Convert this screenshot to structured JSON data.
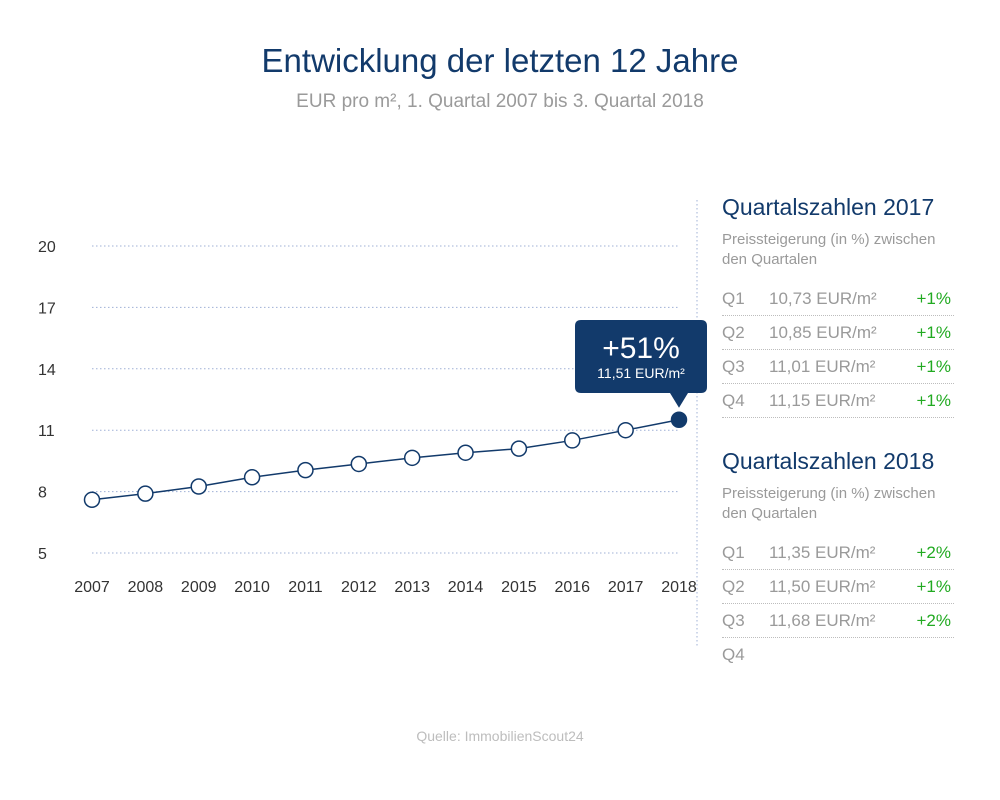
{
  "header": {
    "title": "Entwicklung der letzten 12 Jahre",
    "subtitle": "EUR pro m², 1. Quartal 2007 bis 3. Quartal 2018"
  },
  "chart_data": {
    "type": "line",
    "x": [
      "2007",
      "2008",
      "2009",
      "2010",
      "2011",
      "2012",
      "2013",
      "2014",
      "2015",
      "2016",
      "2017",
      "2018"
    ],
    "series": [
      {
        "values": [
          7.6,
          7.9,
          8.25,
          8.7,
          9.05,
          9.35,
          9.65,
          9.9,
          10.1,
          10.5,
          11.0,
          11.51
        ]
      }
    ],
    "ylim": [
      5,
      20
    ],
    "yticks": [
      5,
      8,
      11,
      14,
      17,
      20
    ],
    "grid": true,
    "line_color": "#123a6b",
    "annotation": {
      "label": "+51%",
      "sublabel": "11,51 EUR/m²",
      "target_index": 11
    }
  },
  "panels": [
    {
      "title": "Quartalszahlen 2017",
      "subtitle": "Preissteigerung (in %) zwischen den Quartalen",
      "rows": [
        {
          "label": "Q1",
          "value": "10,73 EUR/m²",
          "change": "+1%"
        },
        {
          "label": "Q2",
          "value": "10,85 EUR/m²",
          "change": "+1%"
        },
        {
          "label": "Q3",
          "value": "11,01 EUR/m²",
          "change": "+1%"
        },
        {
          "label": "Q4",
          "value": "11,15 EUR/m²",
          "change": "+1%"
        }
      ]
    },
    {
      "title": "Quartalszahlen 2018",
      "subtitle": "Preissteigerung (in %) zwischen den Quartalen",
      "rows": [
        {
          "label": "Q1",
          "value": "11,35 EUR/m²",
          "change": "+2%"
        },
        {
          "label": "Q2",
          "value": "11,50 EUR/m²",
          "change": "+1%"
        },
        {
          "label": "Q3",
          "value": "11,68 EUR/m²",
          "change": "+2%"
        },
        {
          "label": "Q4",
          "value": "",
          "change": ""
        }
      ]
    }
  ],
  "footer": {
    "source": "Quelle: ImmobilienScout24"
  },
  "colors": {
    "accent": "#123a6b",
    "positive": "#22aa22",
    "muted": "#9a9a9a"
  }
}
